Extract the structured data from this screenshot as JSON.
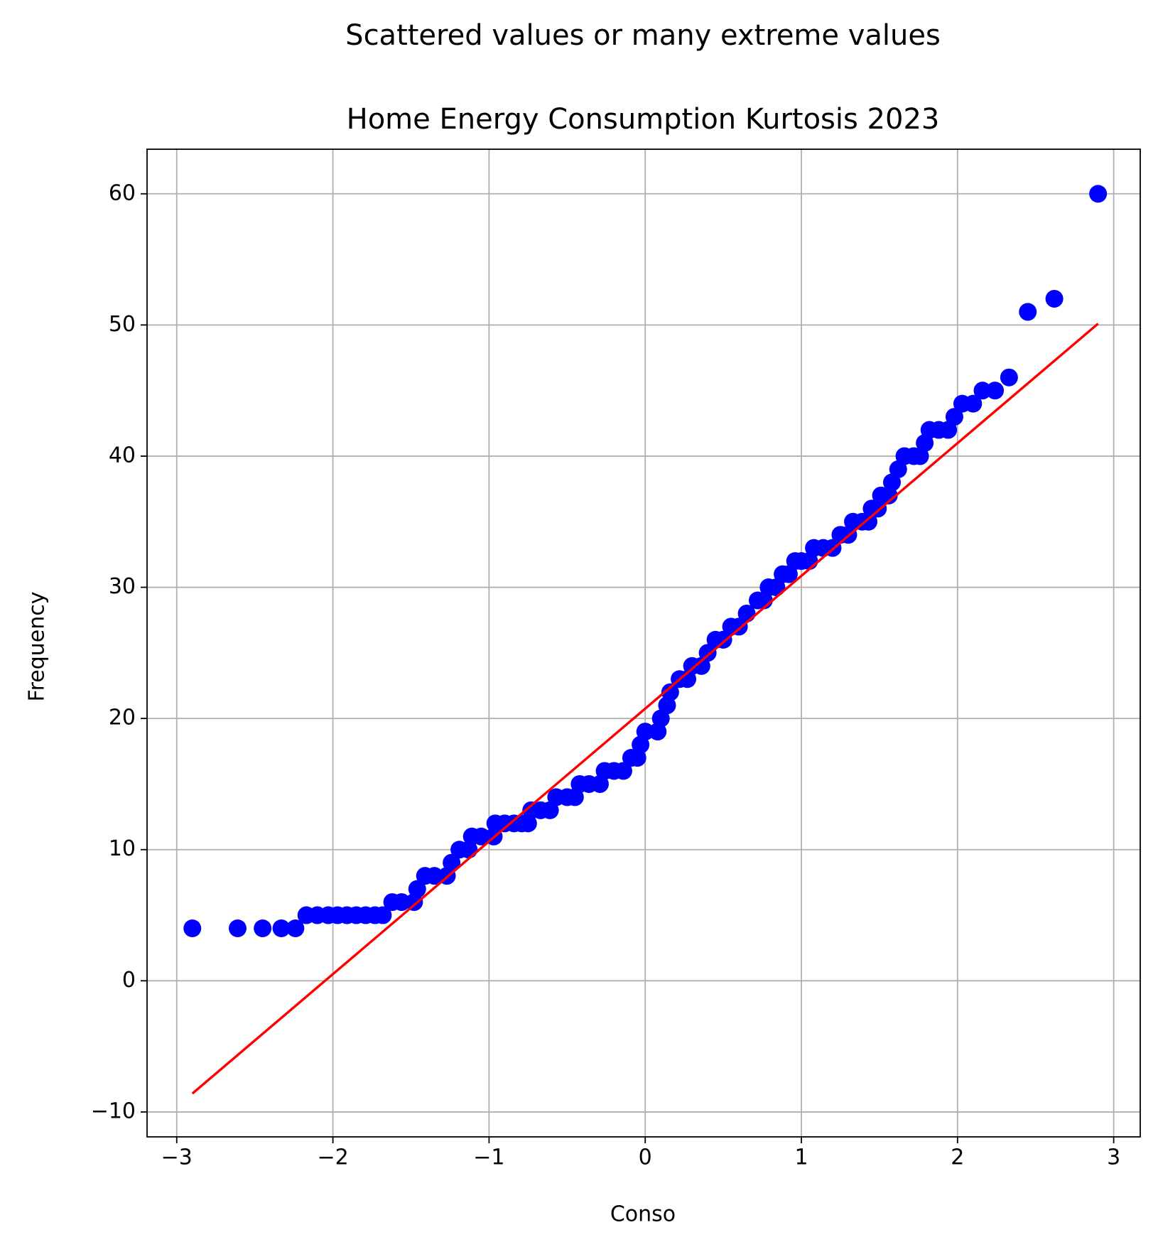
{
  "chart_data": {
    "type": "scatter",
    "suptitle": "Scattered values or many extreme values",
    "title": "Home Energy Consumption Kurtosis 2023",
    "xlabel": "Conso",
    "ylabel": "Frequency",
    "xlim": [
      -3.19,
      3.17
    ],
    "ylim": [
      -11.9,
      63.4
    ],
    "xticks": [
      {
        "value": -3,
        "label": "−3"
      },
      {
        "value": -2,
        "label": "−2"
      },
      {
        "value": -1,
        "label": "−1"
      },
      0,
      1,
      2,
      3
    ],
    "yticks": [
      {
        "value": -10,
        "label": "−10"
      },
      0,
      10,
      20,
      30,
      40,
      50,
      60
    ],
    "grid": true,
    "points": {
      "color": "#0000ff",
      "x": [
        -2.9,
        -2.61,
        -2.45,
        -2.33,
        -2.24,
        -2.17,
        -2.1,
        -2.03,
        -1.97,
        -1.91,
        -1.85,
        -1.79,
        -1.73,
        -1.68,
        -1.62,
        -1.56,
        -1.48,
        -1.46,
        -1.41,
        -1.35,
        -1.27,
        -1.24,
        -1.19,
        -1.13,
        -1.11,
        -1.05,
        -0.97,
        -0.96,
        -0.9,
        -0.84,
        -0.79,
        -0.75,
        -0.73,
        -0.67,
        -0.61,
        -0.57,
        -0.5,
        -0.45,
        -0.42,
        -0.36,
        -0.29,
        -0.26,
        -0.2,
        -0.14,
        -0.09,
        -0.05,
        -0.03,
        0.0,
        0.08,
        0.1,
        0.14,
        0.16,
        0.22,
        0.27,
        0.3,
        0.36,
        0.4,
        0.45,
        0.5,
        0.55,
        0.6,
        0.65,
        0.72,
        0.76,
        0.79,
        0.84,
        0.88,
        0.92,
        0.96,
        1.0,
        1.05,
        1.08,
        1.14,
        1.2,
        1.25,
        1.3,
        1.33,
        1.39,
        1.43,
        1.45,
        1.49,
        1.51,
        1.56,
        1.58,
        1.62,
        1.66,
        1.72,
        1.76,
        1.79,
        1.82,
        1.88,
        1.94,
        1.98,
        2.03,
        2.1,
        2.16,
        2.24,
        2.33,
        2.45,
        2.62,
        2.9
      ],
      "y": [
        4,
        4,
        4,
        4,
        4,
        5,
        5,
        5,
        5,
        5,
        5,
        5,
        5,
        5,
        6,
        6,
        6,
        7,
        8,
        8,
        8,
        9,
        10,
        10,
        11,
        11,
        11,
        12,
        12,
        12,
        12,
        12,
        13,
        13,
        13,
        14,
        14,
        14,
        15,
        15,
        15,
        16,
        16,
        16,
        17,
        17,
        18,
        19,
        19,
        20,
        21,
        22,
        23,
        23,
        24,
        24,
        25,
        26,
        26,
        27,
        27,
        28,
        29,
        29,
        30,
        30,
        31,
        31,
        32,
        32,
        32,
        33,
        33,
        33,
        34,
        34,
        35,
        35,
        35,
        36,
        36,
        37,
        37,
        38,
        39,
        40,
        40,
        40,
        41,
        42,
        42,
        42,
        43,
        44,
        44,
        45,
        45,
        46,
        51,
        52,
        60
      ]
    },
    "fit_line": {
      "color": "#ff0000",
      "x": [
        -2.9,
        2.9
      ],
      "y": [
        -8.6,
        50.1
      ]
    }
  }
}
